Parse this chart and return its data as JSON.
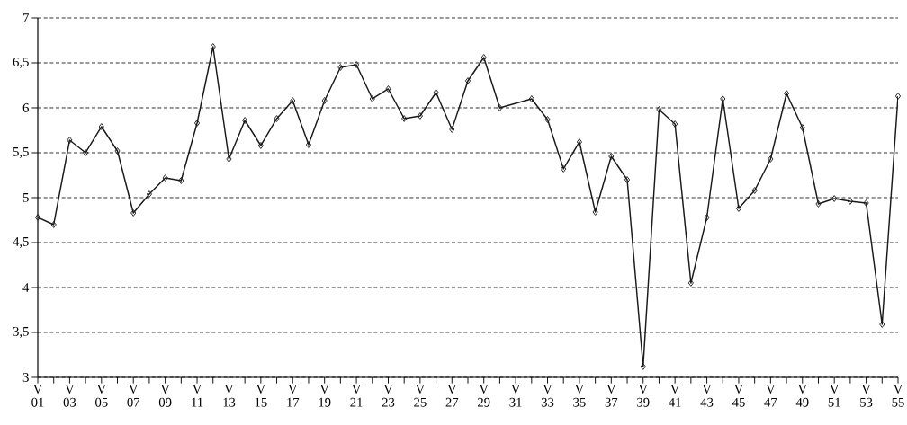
{
  "chart_data": {
    "type": "line",
    "categories": [
      "V 01",
      null,
      "V 03",
      null,
      "V 05",
      null,
      "V 07",
      null,
      "V 09",
      null,
      "V 11",
      null,
      "V 13",
      null,
      "V 15",
      null,
      "V 17",
      null,
      "V 19",
      null,
      "V 21",
      null,
      "V 23",
      null,
      "V 25",
      null,
      "V 27",
      null,
      "V 29",
      null,
      "V 31",
      null,
      "V 33",
      null,
      "V 35",
      null,
      "V 37",
      null,
      "V 39",
      null,
      "V 41",
      null,
      "V 43",
      null,
      "V 45",
      null,
      "V 47",
      null,
      "V 49",
      null,
      "V 51",
      null,
      "V 53",
      null,
      "V 55"
    ],
    "series": [
      {
        "color": "#1a1a1a",
        "values": [
          4.78,
          4.7,
          5.64,
          5.5,
          5.79,
          5.52,
          4.83,
          5.04,
          5.22,
          5.19,
          5.83,
          6.68,
          5.43,
          5.86,
          5.58,
          5.88,
          6.08,
          5.59,
          6.08,
          6.45,
          6.48,
          6.1,
          6.21,
          5.88,
          5.91,
          6.17,
          5.76,
          6.3,
          6.56,
          6.0,
          null,
          6.1,
          5.87,
          5.32,
          5.62,
          4.84,
          5.46,
          5.2,
          3.12,
          5.98,
          5.82,
          4.05,
          4.78,
          6.1,
          4.88,
          5.08,
          5.43,
          6.16,
          5.78,
          4.93,
          4.99,
          4.96,
          4.94,
          3.59,
          6.13
        ]
      }
    ],
    "ylim": [
      3,
      7
    ],
    "yticks": [
      3,
      {
        "value": 3.5,
        "label": "3,5"
      },
      4,
      {
        "value": 4.5,
        "label": "4,5"
      },
      5,
      {
        "value": 5.5,
        "label": "5,5"
      },
      6,
      {
        "value": 6.5,
        "label": "6,5"
      },
      7
    ],
    "grid": "y",
    "marker": "diamond",
    "line_style": "solid"
  }
}
